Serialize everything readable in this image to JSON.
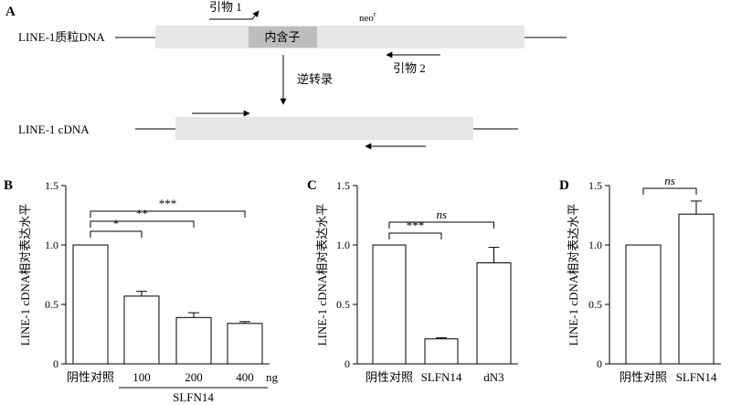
{
  "schematic": {
    "panel_letter": "A",
    "plasmid_label": "LINE-1质粒DNA",
    "neo_label": "neo",
    "neo_superscript": "r",
    "intron_label": "内含子",
    "primer1_label": "引物 1",
    "primer2_label": "引物 2",
    "rt_label": "逆转录",
    "cdna_label": "LINE-1 cDNA"
  },
  "chart_data": [
    {
      "panel": "B",
      "type": "bar",
      "ylabel": "LINE-1 cDNA相对表达水平",
      "xlabel": "SLFN14",
      "ylim": [
        0,
        1.5
      ],
      "yticks": [
        0,
        0.5,
        1.0,
        1.5
      ],
      "ytick_labels": [
        "0",
        "0.5",
        "1.0",
        "1.5"
      ],
      "categories": [
        "阴性对照",
        "100",
        "200",
        "400"
      ],
      "category_unit": "ng",
      "values": [
        1.0,
        0.57,
        0.39,
        0.34
      ],
      "errors": [
        0,
        0.04,
        0.04,
        0.015
      ],
      "significance": [
        {
          "from": 0,
          "to": 1,
          "label": "*"
        },
        {
          "from": 0,
          "to": 2,
          "label": "**"
        },
        {
          "from": 0,
          "to": 3,
          "label": "***"
        }
      ]
    },
    {
      "panel": "C",
      "type": "bar",
      "ylabel": "LINE-1 cDNA相对表达水平",
      "ylim": [
        0,
        1.5
      ],
      "yticks": [
        0,
        0.5,
        1.0,
        1.5
      ],
      "ytick_labels": [
        "0",
        "0.5",
        "1.0",
        "1.5"
      ],
      "categories": [
        "阴性对照",
        "SLFN14",
        "dN3"
      ],
      "values": [
        1.0,
        0.21,
        0.85
      ],
      "errors": [
        0,
        0.01,
        0.13
      ],
      "significance": [
        {
          "from": 0,
          "to": 1,
          "label": "***"
        },
        {
          "from": 0,
          "to": 2,
          "label": "ns"
        }
      ]
    },
    {
      "panel": "D",
      "type": "bar",
      "ylabel": "LINE-1 cDNA相对表达水平",
      "ylim": [
        0,
        1.5
      ],
      "yticks": [
        0,
        0.5,
        1.0,
        1.5
      ],
      "ytick_labels": [
        "0",
        "0.5",
        "1.0",
        "1.5"
      ],
      "categories": [
        "阴性对照",
        "SLFN14"
      ],
      "values": [
        1.0,
        1.26
      ],
      "errors": [
        0,
        0.11
      ],
      "significance": [
        {
          "from": 0,
          "to": 1,
          "label": "ns"
        }
      ]
    }
  ]
}
